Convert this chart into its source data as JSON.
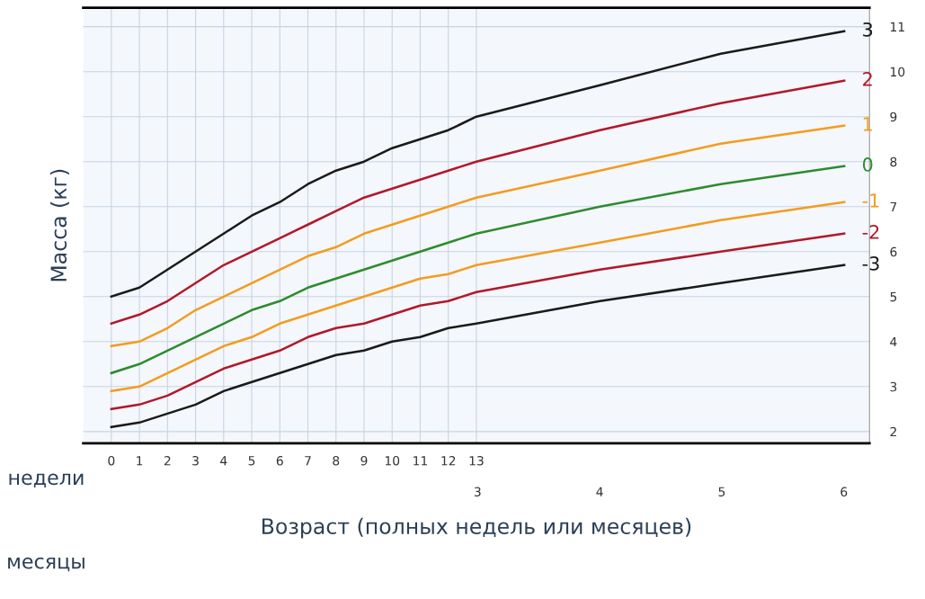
{
  "chart_data": {
    "type": "line",
    "xlabel": "Возраст (полных недель или месяцев)",
    "ylabel": "Масса (кг)",
    "x": [
      0,
      1,
      2,
      3,
      4,
      5,
      6,
      7,
      8,
      9,
      10,
      11,
      12,
      13,
      17.4,
      21.7,
      26.1
    ],
    "series": [
      {
        "name": "3",
        "color": "#1a1a1a",
        "values": [
          5.0,
          5.2,
          5.6,
          6.0,
          6.4,
          6.8,
          7.1,
          7.5,
          7.8,
          8.0,
          8.3,
          8.5,
          8.7,
          9.0,
          9.7,
          10.4,
          10.9
        ]
      },
      {
        "name": "2",
        "color": "#b2182b",
        "values": [
          4.4,
          4.6,
          4.9,
          5.3,
          5.7,
          6.0,
          6.3,
          6.6,
          6.9,
          7.2,
          7.4,
          7.6,
          7.8,
          8.0,
          8.7,
          9.3,
          9.8
        ]
      },
      {
        "name": "1",
        "color": "#f39c1e",
        "values": [
          3.9,
          4.0,
          4.3,
          4.7,
          5.0,
          5.3,
          5.6,
          5.9,
          6.1,
          6.4,
          6.6,
          6.8,
          7.0,
          7.2,
          7.8,
          8.4,
          8.8
        ]
      },
      {
        "name": "0",
        "color": "#2e8b2e",
        "values": [
          3.3,
          3.5,
          3.8,
          4.1,
          4.4,
          4.7,
          4.9,
          5.2,
          5.4,
          5.6,
          5.8,
          6.0,
          6.2,
          6.4,
          7.0,
          7.5,
          7.9
        ]
      },
      {
        "name": "-1",
        "color": "#f39c1e",
        "values": [
          2.9,
          3.0,
          3.3,
          3.6,
          3.9,
          4.1,
          4.4,
          4.6,
          4.8,
          5.0,
          5.2,
          5.4,
          5.5,
          5.7,
          6.2,
          6.7,
          7.1
        ]
      },
      {
        "name": "-2",
        "color": "#b2182b",
        "values": [
          2.5,
          2.6,
          2.8,
          3.1,
          3.4,
          3.6,
          3.8,
          4.1,
          4.3,
          4.4,
          4.6,
          4.8,
          4.9,
          5.1,
          5.6,
          6.0,
          6.4
        ]
      },
      {
        "name": "-3",
        "color": "#1a1a1a",
        "values": [
          2.1,
          2.2,
          2.4,
          2.6,
          2.9,
          3.1,
          3.3,
          3.5,
          3.7,
          3.8,
          4.0,
          4.1,
          4.3,
          4.4,
          4.9,
          5.3,
          5.7
        ]
      }
    ],
    "xlim": [
      -1,
      27
    ],
    "xticks": [
      0,
      1,
      2,
      3,
      4,
      5,
      6,
      7,
      8,
      9,
      10,
      11,
      12,
      13
    ],
    "x2lim": [
      -0.23,
      6.21
    ],
    "x2ticks": [
      3,
      4,
      5,
      6
    ],
    "ylim": [
      1.74,
      11.42
    ],
    "yticks": [
      2,
      3,
      4,
      5,
      6,
      7,
      8,
      9,
      10,
      11
    ],
    "annotations": [
      "недели",
      "месяцы"
    ],
    "grid": true,
    "marker": "none",
    "line_style": "solid",
    "legend": false
  }
}
